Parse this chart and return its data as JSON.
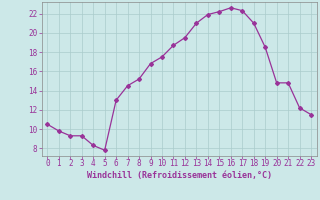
{
  "x": [
    0,
    1,
    2,
    3,
    4,
    5,
    6,
    7,
    8,
    9,
    10,
    11,
    12,
    13,
    14,
    15,
    16,
    17,
    18,
    19,
    20,
    21,
    22,
    23
  ],
  "y": [
    10.5,
    9.8,
    9.3,
    9.3,
    8.3,
    7.8,
    13.0,
    14.5,
    15.2,
    16.8,
    17.5,
    18.7,
    19.5,
    21.0,
    21.9,
    22.2,
    22.6,
    22.3,
    21.0,
    18.5,
    14.8,
    14.8,
    12.2,
    11.5
  ],
  "xlim": [
    -0.5,
    23.5
  ],
  "ylim": [
    7.2,
    23.2
  ],
  "yticks": [
    8,
    10,
    12,
    14,
    16,
    18,
    20,
    22
  ],
  "xticks": [
    0,
    1,
    2,
    3,
    4,
    5,
    6,
    7,
    8,
    9,
    10,
    11,
    12,
    13,
    14,
    15,
    16,
    17,
    18,
    19,
    20,
    21,
    22,
    23
  ],
  "xlabel": "Windchill (Refroidissement éolien,°C)",
  "line_color": "#993399",
  "marker": "D",
  "marker_size": 2.0,
  "background_color": "#cce8e8",
  "grid_color": "#aacccc",
  "tick_color": "#993399",
  "label_color": "#993399",
  "tick_fontsize": 5.5,
  "xlabel_fontsize": 6.0
}
